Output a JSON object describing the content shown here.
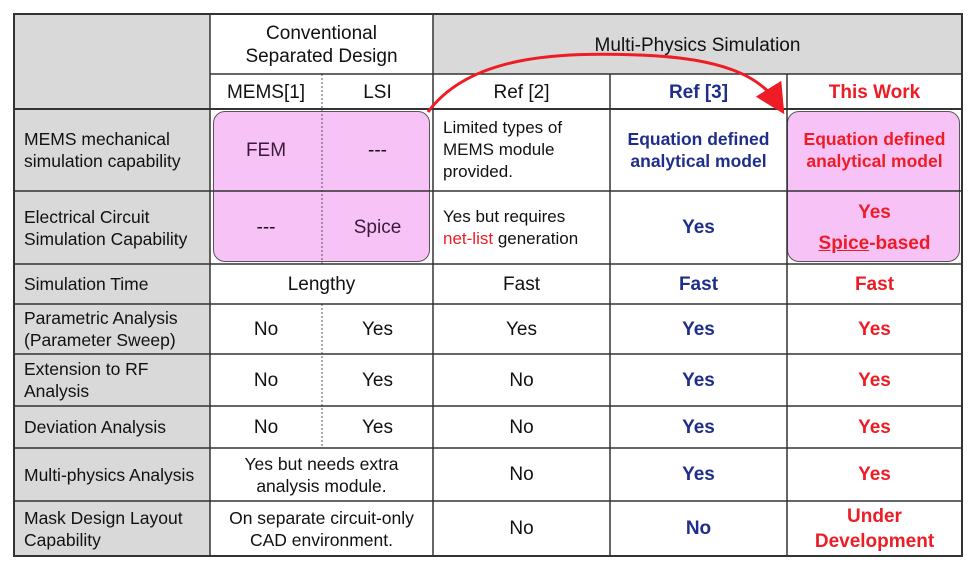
{
  "headers": {
    "conventional": "Conventional Separated Design",
    "multiphysics": "Multi-Physics Simulation",
    "cols": [
      "MEMS[1]",
      "LSI",
      "Ref [2]",
      "Ref [3]",
      "This Work"
    ]
  },
  "rows": [
    {
      "label": "MEMS mechanical simulation capability",
      "mems": "FEM",
      "lsi": "---",
      "ref2": "Limited types of MEMS module provided.",
      "ref3": "Equation defined analytical model",
      "thiswork": "Equation defined analytical model"
    },
    {
      "label": "Electrical Circuit Simulation Capability",
      "mems": "---",
      "lsi": "Spice",
      "ref2_pre": "Yes but requires",
      "ref2_red": "net-list",
      "ref2_post": "generation",
      "ref3": "Yes",
      "thiswork_line1": "Yes",
      "thiswork_u": "Spice",
      "thiswork_rest": "-based"
    },
    {
      "label": "Simulation Time",
      "conv": "Lengthy",
      "ref2": "Fast",
      "ref3": "Fast",
      "thiswork": "Fast"
    },
    {
      "label": "Parametric Analysis (Parameter Sweep)",
      "mems": "No",
      "lsi": "Yes",
      "ref2": "Yes",
      "ref3": "Yes",
      "thiswork": "Yes"
    },
    {
      "label": "Extension to RF Analysis",
      "mems": "No",
      "lsi": "Yes",
      "ref2": "No",
      "ref3": "Yes",
      "thiswork": "Yes"
    },
    {
      "label": "Deviation Analysis",
      "mems": "No",
      "lsi": "Yes",
      "ref2": "No",
      "ref3": "Yes",
      "thiswork": "Yes"
    },
    {
      "label": "Multi-physics Analysis",
      "conv": "Yes but needs extra analysis module.",
      "ref2": "No",
      "ref3": "Yes",
      "thiswork": "Yes"
    },
    {
      "label": "Mask Design Layout Capability",
      "conv": "On separate circuit-only CAD environment.",
      "ref2": "No",
      "ref3": "No",
      "thiswork": "Under Development"
    }
  ],
  "colors": {
    "header_fill": "#d9d9d9",
    "highlight_fill": "#f7c3f7",
    "ref3_text": "#1f2e8a",
    "thiswork_text": "#ee1c25",
    "arrow": "#ee1c25"
  }
}
